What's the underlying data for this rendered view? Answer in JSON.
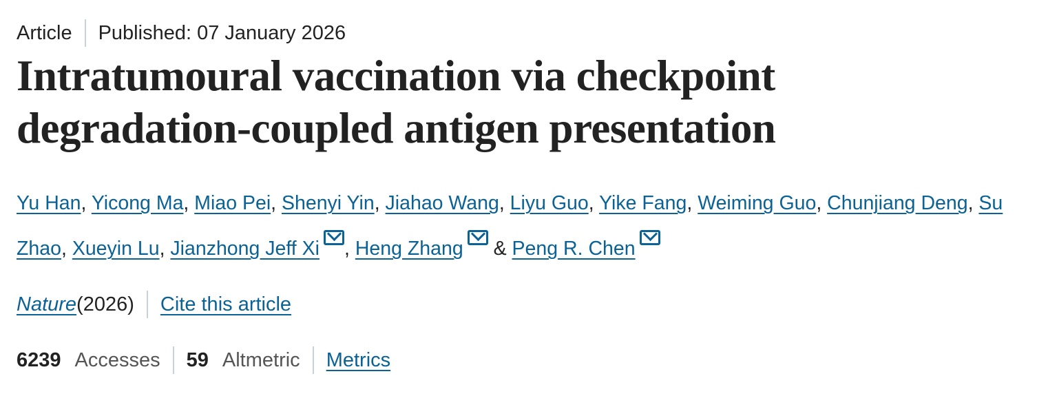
{
  "header": {
    "type": "Article",
    "published": "Published: 07 January 2026"
  },
  "title": "Intratumoural vaccination via checkpoint degradation-coupled antigen presentation",
  "authors": [
    {
      "name": "Yu Han",
      "sep": ", "
    },
    {
      "name": "Yicong Ma",
      "sep": ", "
    },
    {
      "name": "Miao Pei",
      "sep": ", "
    },
    {
      "name": "Shenyi Yin",
      "sep": ", "
    },
    {
      "name": "Jiahao Wang",
      "sep": ", "
    },
    {
      "name": "Liyu Guo",
      "sep": ", "
    },
    {
      "name": "Yike Fang",
      "sep": ", "
    },
    {
      "name": "Weiming Guo",
      "sep": ", "
    },
    {
      "name": "Chunjiang Deng",
      "sep": ", "
    },
    {
      "name": "Su Zhao",
      "sep": ", "
    },
    {
      "name": "Xueyin Lu",
      "sep": ", "
    },
    {
      "name": "Jianzhong Jeff Xi",
      "sep": ", ",
      "email": true
    },
    {
      "name": "Heng Zhang",
      "sep": " & ",
      "email": true
    },
    {
      "name": "Peng R. Chen",
      "sep": "",
      "email": true
    }
  ],
  "citation": {
    "journal": "Nature",
    "year": " (2026)",
    "cite_label": "Cite this article"
  },
  "metrics": {
    "accesses": "6239",
    "accesses_label": "Accesses",
    "altmetric": "59",
    "altmetric_label": "Altmetric",
    "metrics_link": "Metrics"
  },
  "colors": {
    "link": "#0a6296",
    "text": "#222222",
    "separator": "#c5d2dc"
  }
}
